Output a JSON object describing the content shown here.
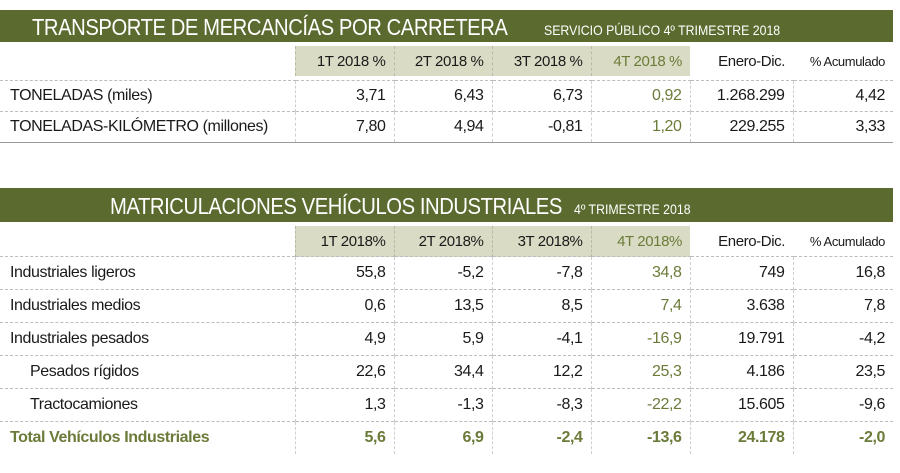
{
  "table1": {
    "title": "TRANSPORTE DE MERCANCÍAS POR CARRETERA",
    "subtitle": "SERVICIO PÚBLICO 4º TRIMESTRE 2018",
    "headers": [
      "1T 2018 %",
      "2T 2018 %",
      "3T 2018 %",
      "4T 2018 %",
      "Enero-Dic.",
      "% Acumulado"
    ],
    "rows": [
      {
        "label": "TONELADAS (miles)",
        "values": [
          "3,71",
          "6,43",
          "6,73",
          "0,92",
          "1.268.299",
          "4,42"
        ]
      },
      {
        "label": "TONELADAS-KILÓMETRO (millones)",
        "values": [
          "7,80",
          "4,94",
          "-0,81",
          "1,20",
          "229.255",
          "3,33"
        ]
      }
    ]
  },
  "table2": {
    "title": "MATRICULACIONES VEHÍCULOS INDUSTRIALES",
    "subtitle": "4º TRIMESTRE 2018",
    "headers": [
      "1T 2018%",
      "2T 2018%",
      "3T 2018%",
      "4T 2018%",
      "Enero-Dic.",
      "% Acumulado"
    ],
    "rows": [
      {
        "label": "Industriales ligeros",
        "values": [
          "55,8",
          "-5,2",
          "-7,8",
          "34,8",
          "749",
          "16,8"
        ]
      },
      {
        "label": "Industriales medios",
        "values": [
          "0,6",
          "13,5",
          "8,5",
          "7,4",
          "3.638",
          "7,8"
        ]
      },
      {
        "label": "Industriales pesados",
        "values": [
          "4,9",
          "5,9",
          "-4,1",
          "-16,9",
          "19.791",
          "-4,2"
        ]
      },
      {
        "label": "Pesados rígidos",
        "values": [
          "22,6",
          "34,4",
          "12,2",
          "25,3",
          "4.186",
          "23,5"
        ]
      },
      {
        "label": "Tractocamiones",
        "values": [
          "1,3",
          "-1,3",
          "-8,3",
          "-22,2",
          "15.605",
          "-9,6"
        ]
      },
      {
        "label": "Total Vehículos Industriales",
        "values": [
          "5,6",
          "6,9",
          "-2,4",
          "-13,6",
          "24.178",
          "-2,0"
        ]
      }
    ]
  },
  "colors": {
    "title_bar": "#5b6b2f",
    "header_bg": "#d9dbc4",
    "accent_green": "#6b7b39"
  }
}
